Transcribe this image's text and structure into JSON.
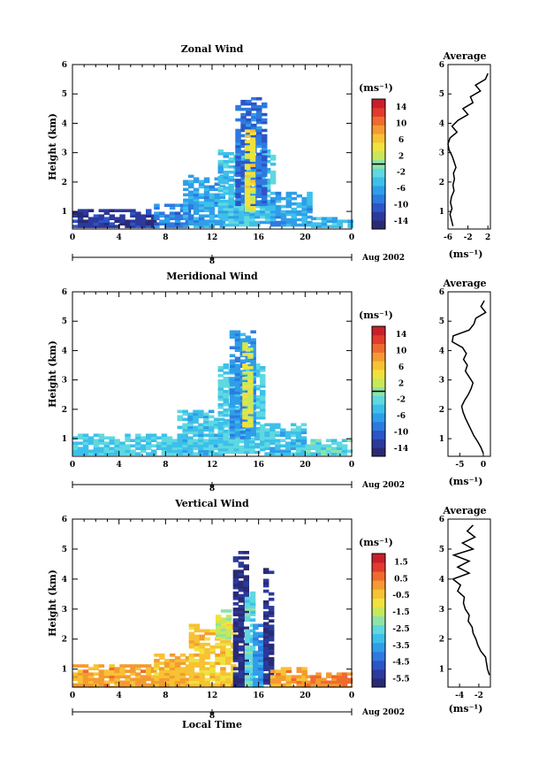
{
  "chart_data": [
    {
      "type": "heatmap",
      "title": "Zonal Wind",
      "ylabel": "Height (km)",
      "xlabel": "",
      "xticks": [
        "0",
        "4",
        "8",
        "12",
        "16",
        "20",
        "0"
      ],
      "yticks": [
        "1",
        "2",
        "3",
        "4",
        "5",
        "6"
      ],
      "xlim": [
        0,
        24
      ],
      "ylim": [
        0.4,
        6
      ],
      "date_marker": "8",
      "date_label": "Aug 2002",
      "colorbar": {
        "unit": "(ms⁻¹)",
        "ticks": [
          "14",
          "10",
          "6",
          "2",
          "-2",
          "-6",
          "-10",
          "-14"
        ],
        "range": [
          -16,
          16
        ],
        "zero_line": 0
      },
      "profile": {
        "title": "Average",
        "xlabel": "(ms⁻¹)",
        "xticks": [
          "-6",
          "-2",
          "2"
        ],
        "xlim": [
          -6,
          2.5
        ],
        "z": [
          0.5,
          0.7,
          0.9,
          1.1,
          1.3,
          1.5,
          1.7,
          1.9,
          2.1,
          2.3,
          2.5,
          2.7,
          2.9,
          3.1,
          3.3,
          3.5,
          3.7,
          3.9,
          4.1,
          4.3,
          4.5,
          4.7,
          4.9,
          5.1,
          5.3,
          5.5,
          5.7
        ],
        "u": [
          -5.0,
          -5.3,
          -5.6,
          -5.2,
          -5.5,
          -5.3,
          -4.8,
          -5.0,
          -4.7,
          -4.9,
          -4.4,
          -4.8,
          -5.2,
          -5.8,
          -6.0,
          -5.6,
          -4.2,
          -5.2,
          -4.0,
          -2.0,
          -3.0,
          -1.0,
          -1.5,
          0.5,
          -0.5,
          1.5,
          2.0
        ]
      },
      "series": [
        {
          "t0": 0,
          "t1": 7,
          "z0": 0.45,
          "z1": 1.0,
          "value": -13
        },
        {
          "t0": 7,
          "t1": 10,
          "z0": 0.45,
          "z1": 1.2,
          "value": -8
        },
        {
          "t0": 9.5,
          "t1": 13,
          "z0": 0.45,
          "z1": 2.2,
          "value": -6
        },
        {
          "t0": 12.5,
          "t1": 17,
          "z0": 0.5,
          "z1": 3.1,
          "value": -4
        },
        {
          "t0": 14,
          "t1": 16.5,
          "z0": 1.2,
          "z1": 4.8,
          "value": -9
        },
        {
          "t0": 14.8,
          "t1": 15.4,
          "z0": 1.0,
          "z1": 3.8,
          "value": 4
        },
        {
          "t0": 17,
          "t1": 20.5,
          "z0": 0.5,
          "z1": 1.6,
          "value": -6
        },
        {
          "t0": 20.5,
          "t1": 24,
          "z0": 0.45,
          "z1": 0.8,
          "value": -5
        }
      ]
    },
    {
      "type": "heatmap",
      "title": "Meridional Wind",
      "ylabel": "Height (km)",
      "xlabel": "",
      "xticks": [
        "0",
        "4",
        "8",
        "12",
        "16",
        "20",
        "0"
      ],
      "yticks": [
        "1",
        "2",
        "3",
        "4",
        "5",
        "6"
      ],
      "xlim": [
        0,
        24
      ],
      "ylim": [
        0.4,
        6
      ],
      "date_marker": "8",
      "date_label": "Aug 2002",
      "colorbar": {
        "unit": "(ms⁻¹)",
        "ticks": [
          "14",
          "10",
          "6",
          "2",
          "-2",
          "-6",
          "-10",
          "-14"
        ],
        "range": [
          -16,
          16
        ],
        "zero_line": 0
      },
      "profile": {
        "title": "Average",
        "xlabel": "(ms⁻¹)",
        "xticks": [
          "-5",
          "0"
        ],
        "xlim": [
          -7.5,
          1.5
        ],
        "z": [
          0.5,
          0.7,
          0.9,
          1.1,
          1.3,
          1.5,
          1.7,
          1.9,
          2.1,
          2.3,
          2.5,
          2.7,
          2.9,
          3.1,
          3.3,
          3.5,
          3.7,
          3.9,
          4.1,
          4.3,
          4.5,
          4.7,
          4.9,
          5.1,
          5.3,
          5.5,
          5.7
        ],
        "u": [
          0.0,
          -0.5,
          -1.2,
          -2.0,
          -2.6,
          -3.2,
          -3.8,
          -4.3,
          -4.6,
          -4.0,
          -3.2,
          -2.6,
          -2.2,
          -3.0,
          -3.8,
          -3.4,
          -4.2,
          -3.6,
          -4.4,
          -6.6,
          -6.4,
          -3.0,
          -2.0,
          -1.6,
          0.5,
          -0.5,
          0.2
        ]
      },
      "series": [
        {
          "t0": 0,
          "t1": 9.5,
          "z0": 0.45,
          "z1": 1.1,
          "value": -3
        },
        {
          "t0": 9,
          "t1": 13,
          "z0": 0.45,
          "z1": 1.9,
          "value": -4
        },
        {
          "t0": 12.5,
          "t1": 16.5,
          "z0": 0.5,
          "z1": 3.5,
          "value": -3
        },
        {
          "t0": 13.5,
          "t1": 15.5,
          "z0": 1.0,
          "z1": 4.6,
          "value": -7
        },
        {
          "t0": 14.6,
          "t1": 15.2,
          "z0": 1.4,
          "z1": 4.2,
          "value": 3
        },
        {
          "t0": 16.5,
          "t1": 20,
          "z0": 0.45,
          "z1": 1.5,
          "value": -4
        },
        {
          "t0": 20,
          "t1": 24,
          "z0": 0.45,
          "z1": 0.9,
          "value": -2
        }
      ]
    },
    {
      "type": "heatmap",
      "title": "Vertical Wind",
      "ylabel": "Height (km)",
      "xlabel": "Local Time",
      "xticks": [
        "0",
        "4",
        "8",
        "12",
        "16",
        "20",
        "0"
      ],
      "yticks": [
        "1",
        "2",
        "3",
        "4",
        "5",
        "6"
      ],
      "xlim": [
        0,
        24
      ],
      "ylim": [
        0.4,
        6
      ],
      "date_marker": "8",
      "date_label": "Aug 2002",
      "colorbar": {
        "unit": "(ms⁻¹)",
        "ticks": [
          "1.5",
          "0.5",
          "-0.5",
          "-1.5",
          "-2.5",
          "-3.5",
          "-4.5",
          "-5.5"
        ],
        "range": [
          -6,
          2
        ],
        "zero_line": null
      },
      "profile": {
        "title": "Average",
        "xlabel": "(ms⁻¹)",
        "xticks": [
          "-4",
          "-2"
        ],
        "xlim": [
          -5.2,
          -0.8
        ],
        "z": [
          0.8,
          1.0,
          1.2,
          1.4,
          1.6,
          1.8,
          2.0,
          2.2,
          2.4,
          2.6,
          2.8,
          3.0,
          3.2,
          3.4,
          3.6,
          3.8,
          4.0,
          4.2,
          4.4,
          4.6,
          4.8,
          5.0,
          5.2,
          5.4,
          5.6,
          5.8
        ],
        "u": [
          -0.9,
          -1.1,
          -1.2,
          -1.3,
          -1.8,
          -2.1,
          -2.3,
          -2.6,
          -2.7,
          -3.1,
          -3.0,
          -3.4,
          -3.6,
          -3.5,
          -4.2,
          -3.9,
          -4.7,
          -3.0,
          -4.2,
          -3.0,
          -4.6,
          -2.6,
          -3.7,
          -2.4,
          -3.2,
          -2.6
        ]
      },
      "series": [
        {
          "t0": 0,
          "t1": 7,
          "z0": 0.35,
          "z1": 1.1,
          "value": 0.0
        },
        {
          "t0": 7,
          "t1": 10,
          "z0": 0.35,
          "z1": 1.5,
          "value": -0.3
        },
        {
          "t0": 10,
          "t1": 13.8,
          "z0": 0.35,
          "z1": 2.5,
          "value": -0.5
        },
        {
          "t0": 12.3,
          "t1": 13.5,
          "z0": 2.0,
          "z1": 3.0,
          "value": -1.5
        },
        {
          "t0": 13.8,
          "t1": 14.8,
          "z0": 0.35,
          "z1": 4.9,
          "value": -5.6
        },
        {
          "t0": 14.8,
          "t1": 15.5,
          "z0": 0.35,
          "z1": 3.5,
          "value": -2.5
        },
        {
          "t0": 15.5,
          "t1": 16.4,
          "z0": 0.35,
          "z1": 2.5,
          "value": -3.8
        },
        {
          "t0": 16.4,
          "t1": 17,
          "z0": 0.5,
          "z1": 4.3,
          "value": -5.4
        },
        {
          "t0": 17,
          "t1": 20,
          "z0": 0.35,
          "z1": 1.0,
          "value": 0.0
        },
        {
          "t0": 20,
          "t1": 24,
          "z0": 0.35,
          "z1": 0.8,
          "value": 0.5
        }
      ]
    }
  ]
}
